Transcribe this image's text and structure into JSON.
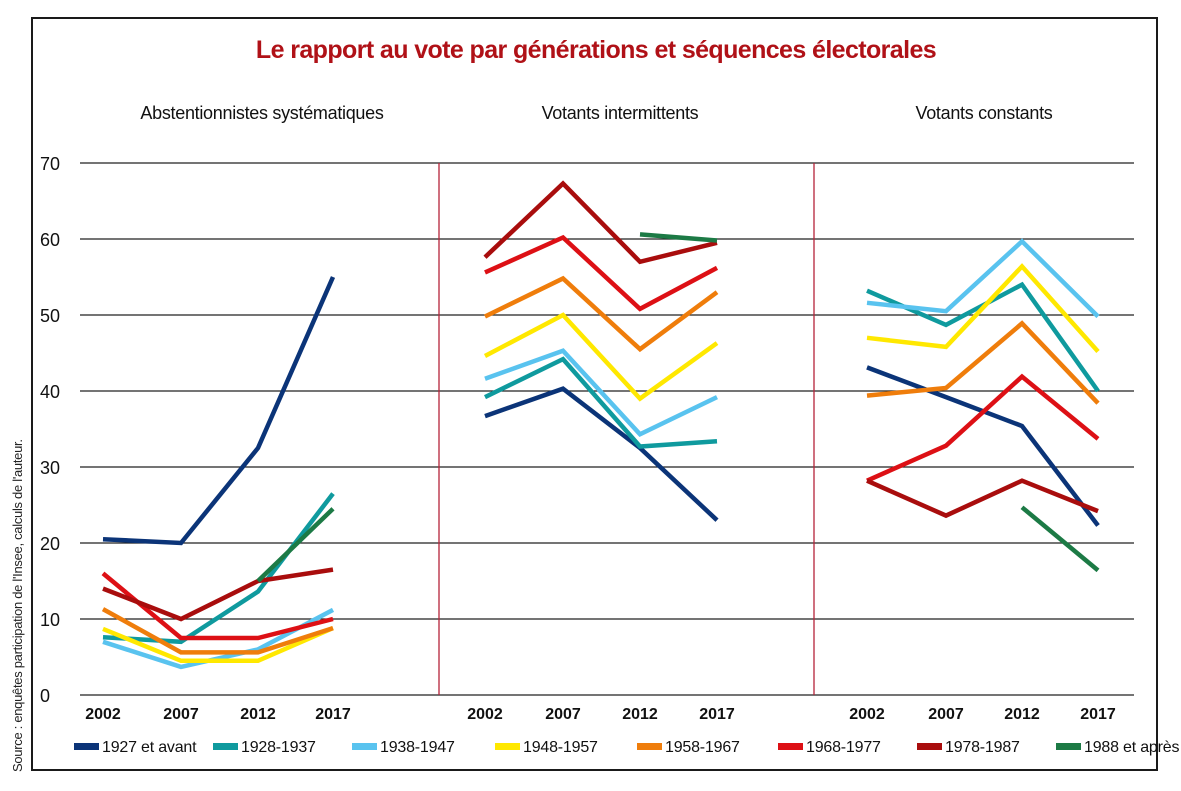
{
  "chart_data": {
    "type": "line",
    "title": "Le rapport au vote par générations et séquences électorales",
    "source": "Source : enquêtes participation de l'Insee, calculs de l'auteur.",
    "ylim": [
      0,
      70
    ],
    "yticks": [
      0,
      10,
      20,
      30,
      40,
      50,
      60,
      70
    ],
    "grid": true,
    "legend_position": "bottom",
    "x": [
      "2002",
      "2007",
      "2012",
      "2017"
    ],
    "series_styles": [
      {
        "name": "1927 et avant",
        "color": "#0b3478"
      },
      {
        "name": "1928-1937",
        "color": "#0f9a9e"
      },
      {
        "name": "1938-1947",
        "color": "#59c3ef"
      },
      {
        "name": "1948-1957",
        "color": "#ffe800"
      },
      {
        "name": "1958-1967",
        "color": "#ef7d0b"
      },
      {
        "name": "1968-1977",
        "color": "#dd1015"
      },
      {
        "name": "1978-1987",
        "color": "#a90d0d"
      },
      {
        "name": "1988 et après",
        "color": "#1c7a45"
      }
    ],
    "panels": [
      {
        "title": "Abstentionnistes systématiques",
        "series": [
          {
            "name": "1927 et avant",
            "values": [
              20.5,
              20,
              32.5,
              55
            ]
          },
          {
            "name": "1928-1937",
            "values": [
              7.6,
              7,
              13.6,
              26.5
            ]
          },
          {
            "name": "1938-1947",
            "values": [
              7,
              3.7,
              6,
              11.2
            ]
          },
          {
            "name": "1948-1957",
            "values": [
              8.7,
              4.5,
              4.5,
              8.8
            ]
          },
          {
            "name": "1958-1967",
            "values": [
              11.3,
              5.6,
              5.6,
              8.8
            ]
          },
          {
            "name": "1968-1977",
            "values": [
              16,
              7.5,
              7.5,
              10
            ]
          },
          {
            "name": "1978-1987",
            "values": [
              14,
              10,
              15,
              16.5
            ]
          },
          {
            "name": "1988 et après",
            "values": [
              null,
              null,
              15,
              24.5
            ]
          }
        ]
      },
      {
        "title": "Votants intermittents",
        "series": [
          {
            "name": "1927 et avant",
            "values": [
              36.7,
              40.3,
              32.5,
              23
            ]
          },
          {
            "name": "1928-1937",
            "values": [
              39.2,
              44.2,
              32.7,
              33.4
            ]
          },
          {
            "name": "1938-1947",
            "values": [
              41.6,
              45.3,
              34.3,
              39.2
            ]
          },
          {
            "name": "1948-1957",
            "values": [
              44.6,
              50,
              39,
              46.3
            ]
          },
          {
            "name": "1958-1967",
            "values": [
              49.8,
              54.8,
              45.5,
              53
            ]
          },
          {
            "name": "1968-1977",
            "values": [
              55.6,
              60.2,
              50.8,
              56.2
            ]
          },
          {
            "name": "1978-1987",
            "values": [
              57.6,
              67.3,
              57,
              59.5
            ]
          },
          {
            "name": "1988 et après",
            "values": [
              null,
              null,
              60.6,
              59.8
            ]
          }
        ]
      },
      {
        "title": "Votants constants",
        "series": [
          {
            "name": "1927 et avant",
            "values": [
              43.1,
              39.2,
              35.4,
              22.3
            ]
          },
          {
            "name": "1928-1937",
            "values": [
              53.2,
              48.7,
              54,
              40
            ]
          },
          {
            "name": "1938-1947",
            "values": [
              51.6,
              50.5,
              59.7,
              49.8
            ]
          },
          {
            "name": "1948-1957",
            "values": [
              47,
              45.8,
              56.4,
              45.2
            ]
          },
          {
            "name": "1958-1967",
            "values": [
              39.4,
              40.4,
              48.9,
              38.4
            ]
          },
          {
            "name": "1968-1977",
            "values": [
              28.2,
              32.8,
              41.9,
              33.7
            ]
          },
          {
            "name": "1978-1987",
            "values": [
              28.2,
              23.6,
              28.2,
              24.2
            ]
          },
          {
            "name": "1988 et après",
            "values": [
              null,
              null,
              24.7,
              16.4
            ]
          }
        ]
      }
    ]
  }
}
